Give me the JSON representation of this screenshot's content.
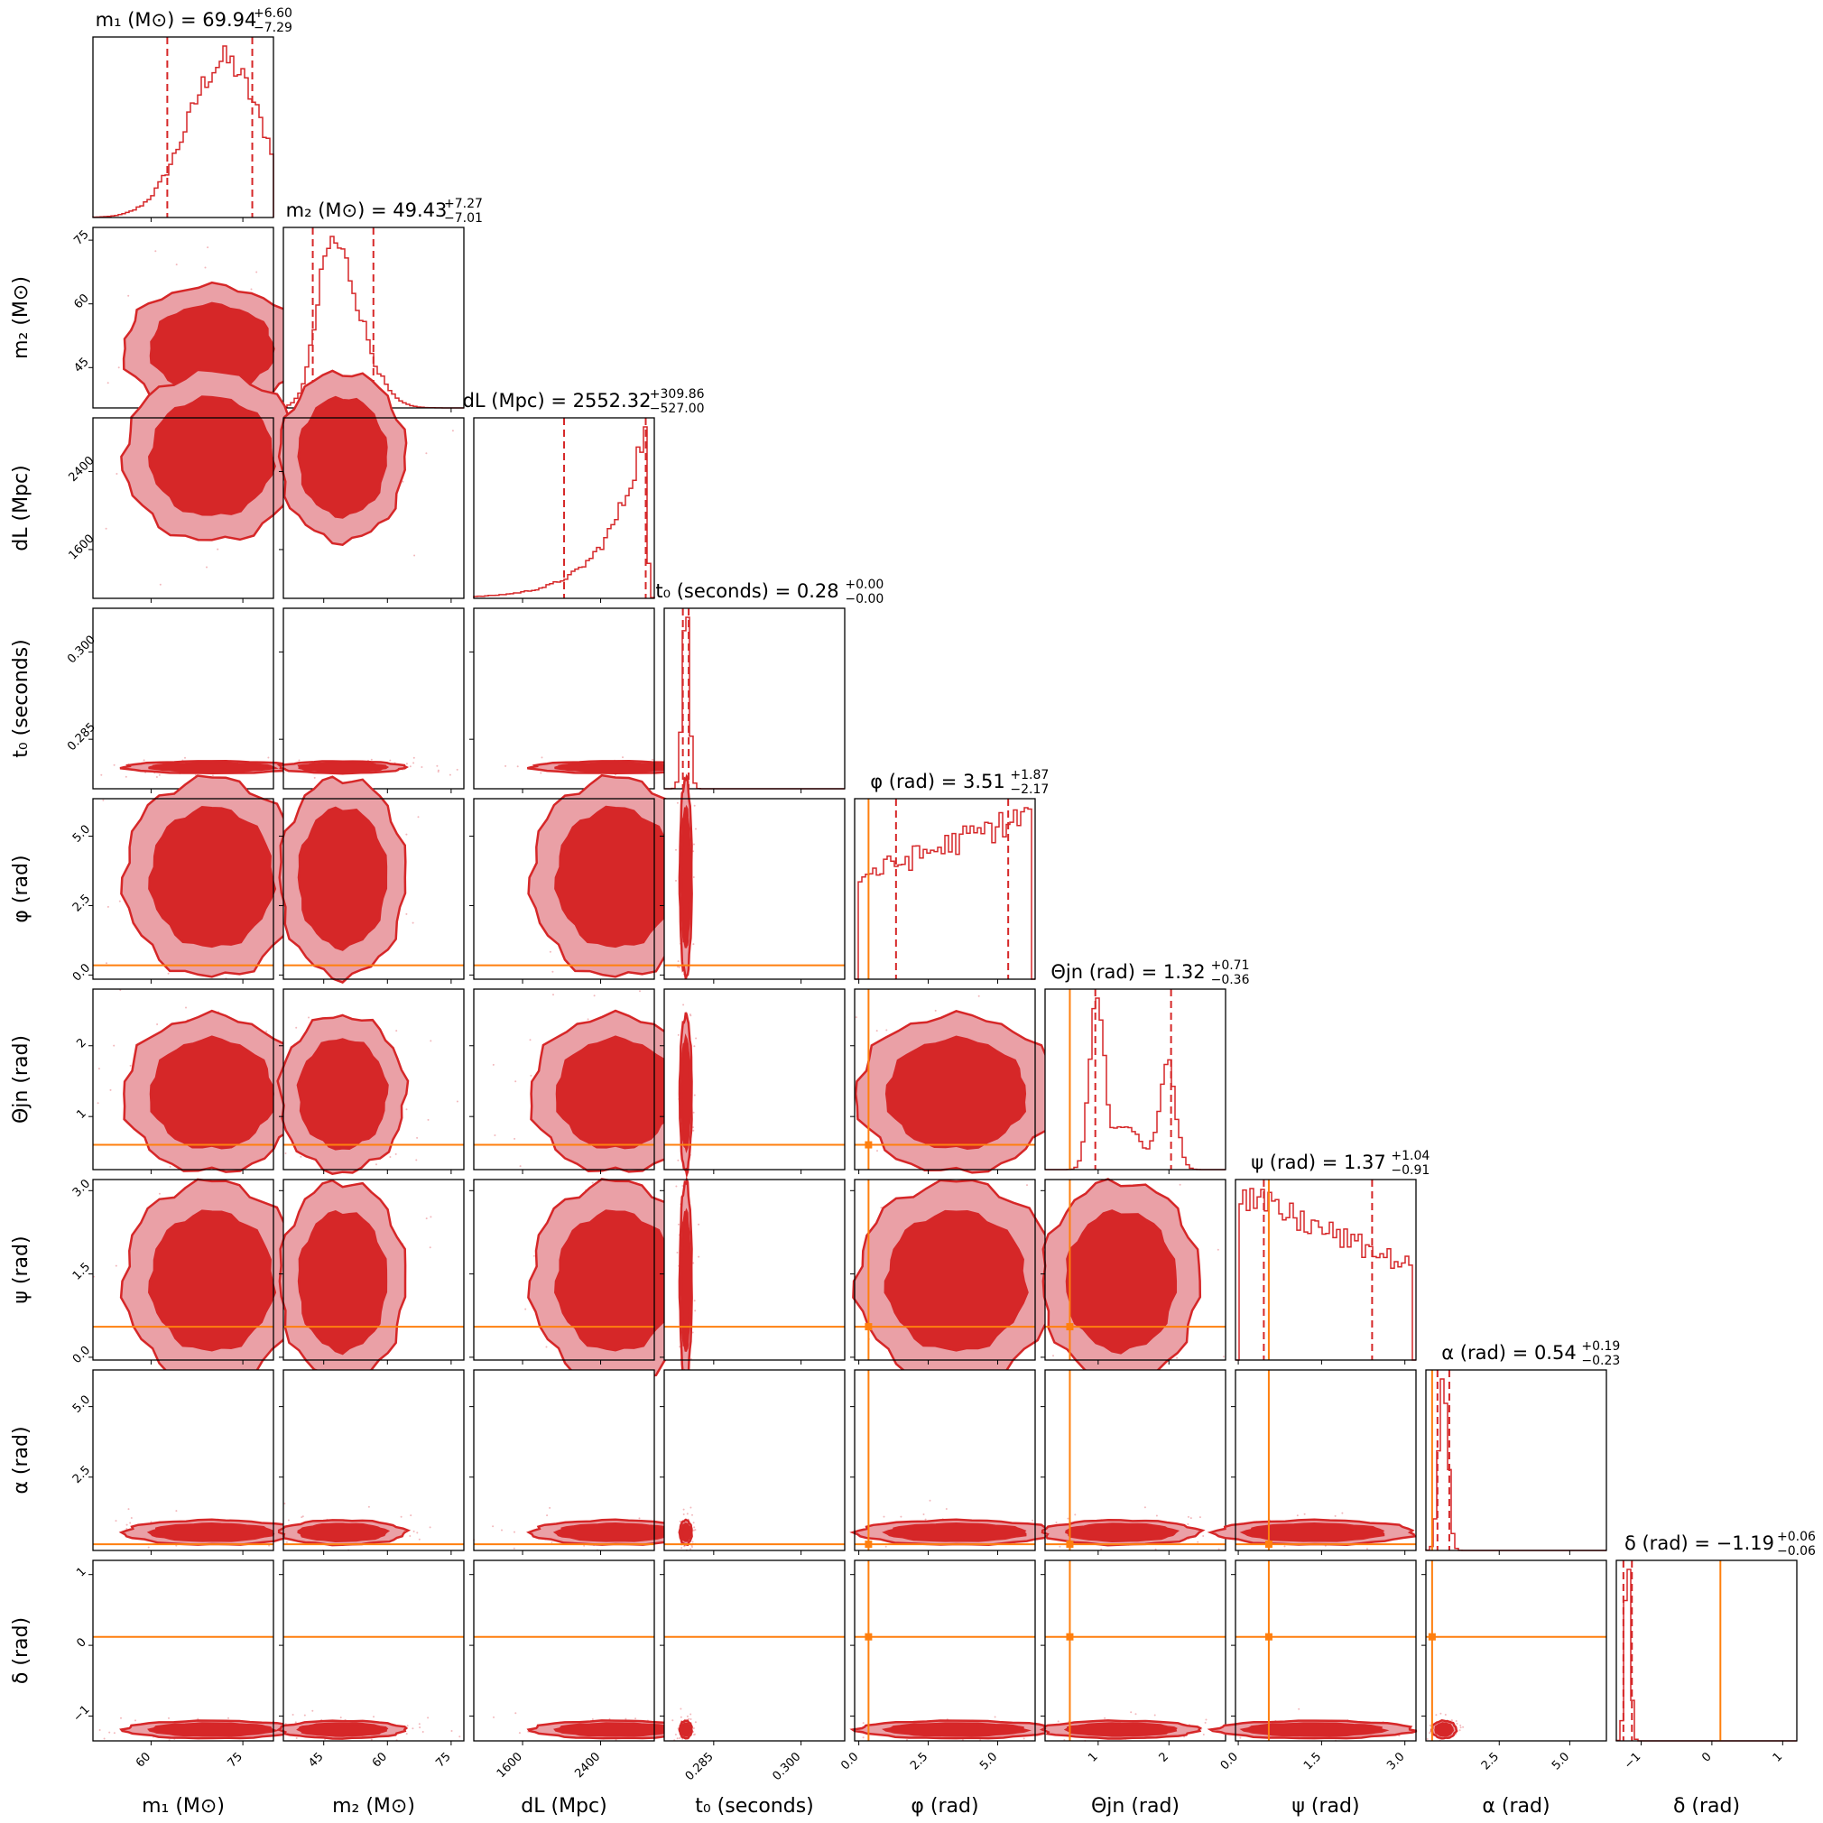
{
  "chart_data": {
    "type": "corner",
    "colors": {
      "posterior": "#d62728",
      "posterior_light": "#eaa0a6",
      "truth": "#ff7f0e"
    },
    "parameters": [
      {
        "key": "m1",
        "label": "m₁ (M⊙)",
        "title_main": "m₁ (M⊙) = 69.94",
        "title_plus": "+6.60",
        "title_minus": "−7.29",
        "range": [
          50.5,
          80
        ],
        "median": 69.94,
        "q_lo": 62.65,
        "q_hi": 76.54,
        "ticks": [
          60,
          75
        ],
        "tick_labels": [
          "60",
          "75"
        ],
        "truth": null
      },
      {
        "key": "m2",
        "label": "m₂ (M⊙)",
        "title_main": "m₂ (M⊙) = 49.43",
        "title_plus": "+7.27",
        "title_minus": "−7.01",
        "range": [
          35.5,
          78
        ],
        "median": 49.43,
        "q_lo": 42.42,
        "q_hi": 56.7,
        "ticks": [
          45,
          60,
          75
        ],
        "tick_labels": [
          "45",
          "60",
          "75"
        ],
        "truth": null
      },
      {
        "key": "dL",
        "label": "dL (Mpc)",
        "title_main": "dL (Mpc) = 2552.32",
        "title_plus": "+309.86",
        "title_minus": "−527.00",
        "range": [
          1100,
          2950
        ],
        "median": 2552.32,
        "q_lo": 2025.32,
        "q_hi": 2862.18,
        "ticks": [
          1600,
          2400
        ],
        "tick_labels": [
          "1600",
          "2400"
        ],
        "truth": null
      },
      {
        "key": "t0",
        "label": "t₀ (seconds)",
        "title_main": "t₀ (seconds) = 0.28",
        "title_plus": "+0.00",
        "title_minus": "−0.00",
        "range": [
          0.2765,
          0.3075
        ],
        "median": 0.2802,
        "q_lo": 0.2797,
        "q_hi": 0.2807,
        "ticks": [
          0.285,
          0.3
        ],
        "tick_labels": [
          "0.285",
          "0.300"
        ],
        "truth": null
      },
      {
        "key": "phi",
        "label": "φ (rad)",
        "title_main": "φ (rad) = 3.51",
        "title_plus": "+1.87",
        "title_minus": "−2.17",
        "range": [
          -0.15,
          6.35
        ],
        "median": 3.51,
        "q_lo": 1.34,
        "q_hi": 5.38,
        "ticks": [
          0,
          2.5,
          5
        ],
        "tick_labels": [
          "0.0",
          "2.5",
          "5.0"
        ],
        "truth": 0.35
      },
      {
        "key": "theta",
        "label": "Θjn (rad)",
        "title_main": "Θjn (rad) = 1.32",
        "title_plus": "+0.71",
        "title_minus": "−0.36",
        "range": [
          0.25,
          2.8
        ],
        "median": 1.32,
        "q_lo": 0.96,
        "q_hi": 2.03,
        "ticks": [
          1,
          2
        ],
        "tick_labels": [
          "1",
          "2"
        ],
        "truth": 0.6
      },
      {
        "key": "psi",
        "label": "ψ (rad)",
        "title_main": "ψ (rad) = 1.37",
        "title_plus": "+1.04",
        "title_minus": "−0.91",
        "range": [
          -0.05,
          3.2
        ],
        "median": 1.37,
        "q_lo": 0.46,
        "q_hi": 2.41,
        "ticks": [
          0,
          1.5,
          3
        ],
        "tick_labels": [
          "0.0",
          "1.5",
          "3.0"
        ],
        "truth": 0.55
      },
      {
        "key": "alpha",
        "label": "α (rad)",
        "title_main": "α (rad) = 0.54",
        "title_plus": "+0.19",
        "title_minus": "−0.23",
        "range": [
          -0.1,
          6.3
        ],
        "median": 0.54,
        "q_lo": 0.31,
        "q_hi": 0.73,
        "ticks": [
          2.5,
          5
        ],
        "tick_labels": [
          "2.5",
          "5.0"
        ],
        "truth": 0.12
      },
      {
        "key": "delta",
        "label": "δ (rad)",
        "title_main": "δ (rad) = −1.19",
        "title_plus": "+0.06",
        "title_minus": "−0.06",
        "range": [
          -1.35,
          1.2
        ],
        "median": -1.19,
        "q_lo": -1.25,
        "q_hi": -1.13,
        "ticks": [
          -1,
          0,
          1
        ],
        "tick_labels": [
          "−1",
          "0",
          "1"
        ],
        "truth": 0.12
      }
    ]
  }
}
